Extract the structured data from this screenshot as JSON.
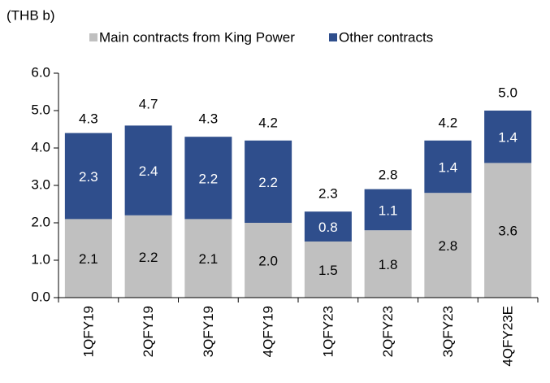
{
  "chart_data": {
    "type": "stacked_bar",
    "unit_label": "(THB b)",
    "categories": [
      "1QFY19",
      "2QFY19",
      "3QFY19",
      "4QFY19",
      "1QFY23",
      "2QFY23",
      "3QFY23",
      "4QFY23E"
    ],
    "series": [
      {
        "name": "Main contracts from King Power",
        "color": "#c0c0c0",
        "label_color": "#000000",
        "values": [
          2.1,
          2.2,
          2.1,
          2.0,
          1.5,
          1.8,
          2.8,
          3.6
        ],
        "value_labels": [
          "2.1",
          "2.2",
          "2.1",
          "2.0",
          "1.5",
          "1.8",
          "2.8",
          "3.6"
        ]
      },
      {
        "name": "Other contracts",
        "color": "#2f4e8c",
        "label_color": "#ffffff",
        "values": [
          2.3,
          2.4,
          2.2,
          2.2,
          0.8,
          1.1,
          1.4,
          1.4
        ],
        "value_labels": [
          "2.3",
          "2.4",
          "2.2",
          "2.2",
          "0.8",
          "1.1",
          "1.4",
          "1.4"
        ]
      }
    ],
    "totals": {
      "values": [
        4.3,
        4.7,
        4.3,
        4.2,
        2.3,
        2.8,
        4.2,
        5.0
      ],
      "value_labels": [
        "4.3",
        "4.7",
        "4.3",
        "4.2",
        "2.3",
        "2.8",
        "4.2",
        "5.0"
      ]
    },
    "ylim": [
      0,
      6
    ],
    "yticks": [
      {
        "value": 0,
        "label": "0.0"
      },
      {
        "value": 1,
        "label": "1.0"
      },
      {
        "value": 2,
        "label": "2.0"
      },
      {
        "value": 3,
        "label": "3.0"
      },
      {
        "value": 4,
        "label": "4.0"
      },
      {
        "value": 5,
        "label": "5.0"
      },
      {
        "value": 6,
        "label": "6.0"
      }
    ],
    "legend": "top"
  }
}
